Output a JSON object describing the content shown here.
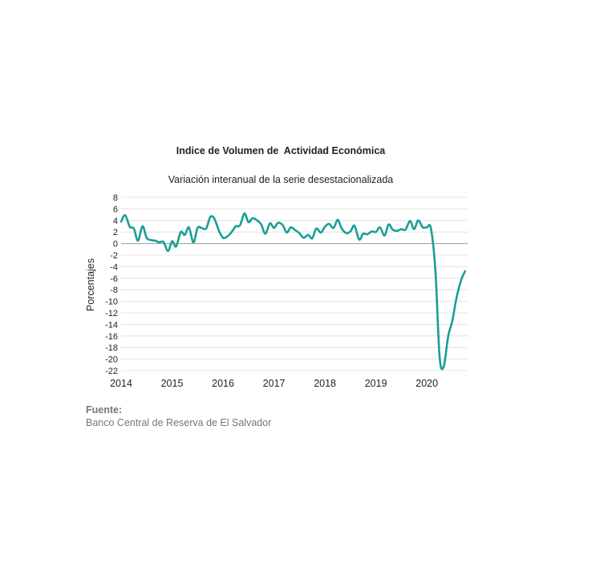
{
  "chart_data": {
    "type": "line",
    "title": "Indice de Volumen de  Actividad Económica",
    "subtitle": "Variación interanual de la serie desestacionalizada",
    "xlabel": "",
    "ylabel": "Porcentajes",
    "x_ticks": [
      "2014",
      "2015",
      "2016",
      "2017",
      "2018",
      "2019",
      "2020"
    ],
    "y_ticks": [
      8,
      6,
      4,
      2,
      0,
      -2,
      -4,
      -6,
      -8,
      -10,
      -12,
      -14,
      -16,
      -18,
      -20,
      -22
    ],
    "ylim": [
      -22,
      8
    ],
    "xlim": [
      2014.0,
      2020.8
    ],
    "grid": true,
    "line_color": "#1a9e96",
    "zero_line_color": "#9a9a9a",
    "series": [
      {
        "x": [
          2014.0,
          2014.08,
          2014.17,
          2014.25,
          2014.33,
          2014.42,
          2014.5,
          2014.58,
          2014.67,
          2014.75,
          2014.83,
          2014.92,
          2015.0,
          2015.08,
          2015.17,
          2015.25,
          2015.33,
          2015.42,
          2015.5,
          2015.58,
          2015.67,
          2015.75,
          2015.83,
          2015.92,
          2016.0,
          2016.08,
          2016.17,
          2016.25,
          2016.33,
          2016.42,
          2016.5,
          2016.58,
          2016.67,
          2016.75,
          2016.83,
          2016.92,
          2017.0,
          2017.08,
          2017.17,
          2017.25,
          2017.33,
          2017.42,
          2017.5,
          2017.58,
          2017.67,
          2017.75,
          2017.83,
          2017.92,
          2018.0,
          2018.08,
          2018.17,
          2018.25,
          2018.33,
          2018.42,
          2018.5,
          2018.58,
          2018.67,
          2018.75,
          2018.83,
          2018.92,
          2019.0,
          2019.08,
          2019.17,
          2019.25,
          2019.33,
          2019.42,
          2019.5,
          2019.58,
          2019.67,
          2019.75,
          2019.83,
          2019.92,
          2020.0,
          2020.08,
          2020.17,
          2020.25,
          2020.33,
          2020.42,
          2020.5,
          2020.58,
          2020.67,
          2020.75
        ],
        "values": [
          3.8,
          4.9,
          2.9,
          2.6,
          0.5,
          3.0,
          1.0,
          0.6,
          0.5,
          0.2,
          0.3,
          -1.3,
          0.4,
          -0.5,
          2.0,
          1.5,
          2.8,
          0.2,
          2.7,
          2.7,
          2.6,
          4.6,
          4.3,
          2.2,
          1.0,
          1.2,
          2.0,
          3.0,
          3.1,
          5.2,
          3.7,
          4.4,
          4.0,
          3.3,
          1.7,
          3.5,
          2.7,
          3.6,
          3.2,
          1.9,
          2.8,
          2.3,
          1.8,
          1.0,
          1.5,
          0.9,
          2.6,
          1.9,
          2.9,
          3.4,
          2.7,
          4.1,
          2.6,
          1.8,
          2.1,
          3.1,
          0.7,
          1.7,
          1.6,
          2.1,
          2.0,
          2.8,
          1.4,
          3.3,
          2.4,
          2.2,
          2.5,
          2.4,
          3.9,
          2.5,
          4.0,
          2.8,
          2.8,
          2.6,
          -5.0,
          -19.6,
          -21.3,
          -16.0,
          -13.4,
          -9.5,
          -6.4,
          -4.8
        ]
      }
    ]
  },
  "source": {
    "label": "Fuente:",
    "text": "Banco Central de Reserva de El Salvador"
  }
}
